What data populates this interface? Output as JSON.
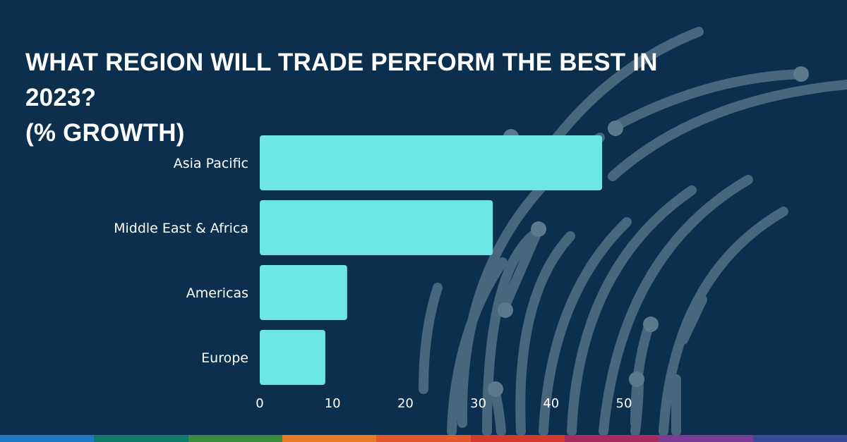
{
  "header": {
    "title_line1": "WHAT REGION WILL TRADE PERFORM THE BEST IN 2023?",
    "title_line2": "(% GROWTH)"
  },
  "colors": {
    "background": "#0b2f4d",
    "bar": "#6de6ea",
    "decor": "#5d7a8d",
    "strip": [
      "#1f79c4",
      "#0e7a6c",
      "#3a8d3f",
      "#e97a25",
      "#e4582d",
      "#d7392f",
      "#a72a62",
      "#7a3c95",
      "#3a4a9a"
    ]
  },
  "chart_data": {
    "type": "bar",
    "orientation": "horizontal",
    "title": "WHAT REGION WILL TRADE PERFORM THE BEST IN 2023? (% GROWTH)",
    "categories": [
      "Asia Pacific",
      "Middle East & Africa",
      "Americas",
      "Europe"
    ],
    "values": [
      47,
      32,
      12,
      9
    ],
    "xlim": [
      0,
      50
    ],
    "xticks": [
      0,
      10,
      20,
      30,
      40,
      50
    ],
    "grid": false,
    "legend": "none"
  }
}
